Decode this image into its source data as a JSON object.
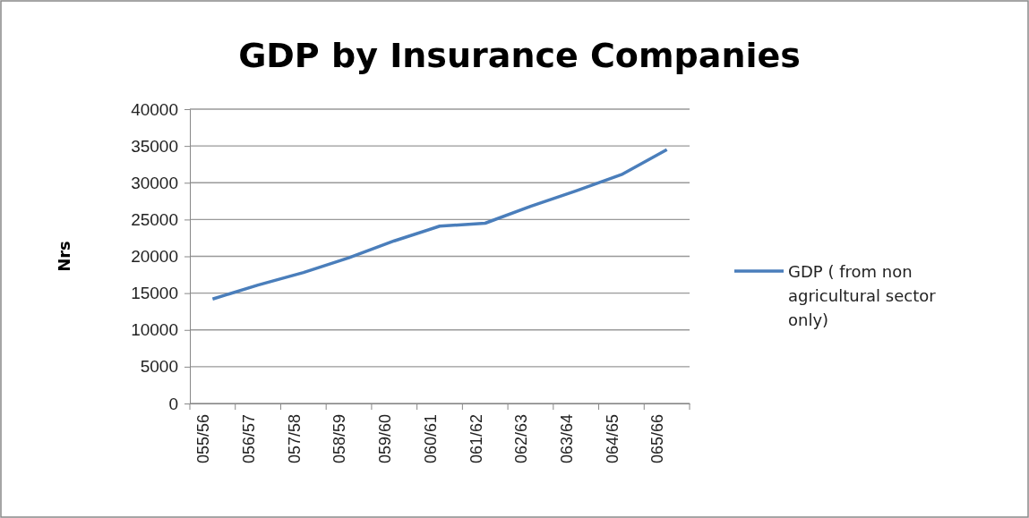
{
  "chart_data": {
    "type": "line",
    "title": "GDP by Insurance Companies",
    "ylabel": "Nrs",
    "categories": [
      "055/56",
      "056/57",
      "057/58",
      "058/59",
      "059/60",
      "060/61",
      "061/62",
      "062/63",
      "063/64",
      "064/65",
      "065/66"
    ],
    "series": [
      {
        "name": "GDP ( from non agricultural sector only)",
        "color": "#4a7ebb",
        "values": [
          14200,
          16100,
          17800,
          19800,
          22100,
          24100,
          24500,
          26800,
          28900,
          31100,
          34500
        ]
      }
    ],
    "ylim": [
      0,
      40000
    ],
    "yticks": [
      0,
      5000,
      10000,
      15000,
      20000,
      25000,
      30000,
      35000,
      40000
    ],
    "grid": "y",
    "legend": "right",
    "marker": "none",
    "line_style": "solid"
  }
}
